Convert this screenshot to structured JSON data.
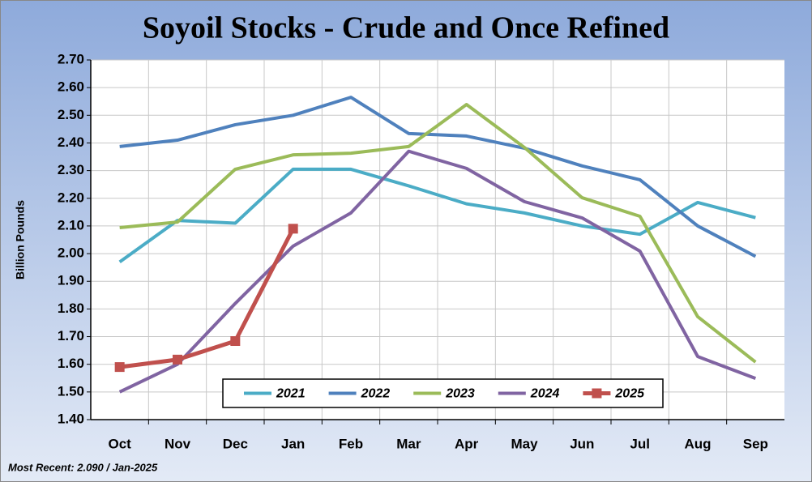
{
  "chart_data": {
    "type": "line",
    "title": "Soyoil Stocks - Crude and Once Refined",
    "y_label": "Billion Pounds",
    "note": "Most Recent: 2.090 / Jan-2025",
    "categories": [
      "Oct",
      "Nov",
      "Dec",
      "Jan",
      "Feb",
      "Mar",
      "Apr",
      "May",
      "Jun",
      "Jul",
      "Aug",
      "Sep"
    ],
    "series": [
      {
        "name": "2021",
        "color": "#4bacc6",
        "values": [
          1.97,
          2.12,
          2.11,
          2.305,
          2.305,
          2.245,
          2.18,
          2.147,
          2.1,
          2.07,
          2.185,
          2.13
        ]
      },
      {
        "name": "2022",
        "color": "#4f81bd",
        "values": [
          2.387,
          2.41,
          2.466,
          2.5,
          2.565,
          2.434,
          2.425,
          2.381,
          2.317,
          2.267,
          2.1,
          1.99
        ]
      },
      {
        "name": "2023",
        "color": "#9bbb59",
        "values": [
          2.094,
          2.114,
          2.305,
          2.357,
          2.363,
          2.387,
          2.539,
          2.384,
          2.202,
          2.135,
          1.772,
          1.608
        ]
      },
      {
        "name": "2024",
        "color": "#8064a2",
        "values": [
          1.5,
          1.6,
          1.82,
          2.027,
          2.147,
          2.37,
          2.308,
          2.188,
          2.129,
          2.009,
          1.628,
          1.549
        ]
      },
      {
        "name": "2025",
        "color": "#c0504d",
        "marker": "square",
        "values": [
          1.59,
          1.617,
          1.684,
          2.09,
          null,
          null,
          null,
          null,
          null,
          null,
          null,
          null
        ]
      }
    ],
    "ylim": [
      1.4,
      2.7
    ],
    "yticks": [
      {
        "value": 1.4,
        "label": "1.40"
      },
      {
        "value": 1.5,
        "label": "1.50"
      },
      {
        "value": 1.6,
        "label": "1.60"
      },
      {
        "value": 1.7,
        "label": "1.70"
      },
      {
        "value": 1.8,
        "label": "1.80"
      },
      {
        "value": 1.9,
        "label": "1.90"
      },
      {
        "value": 2.0,
        "label": "2.00"
      },
      {
        "value": 2.1,
        "label": "2.10"
      },
      {
        "value": 2.2,
        "label": "2.20"
      },
      {
        "value": 2.3,
        "label": "2.30"
      },
      {
        "value": 2.4,
        "label": "2.40"
      },
      {
        "value": 2.5,
        "label": "2.50"
      },
      {
        "value": 2.6,
        "label": "2.60"
      },
      {
        "value": 2.7,
        "label": "2.70"
      }
    ],
    "grid": true,
    "legend": "bottom"
  }
}
